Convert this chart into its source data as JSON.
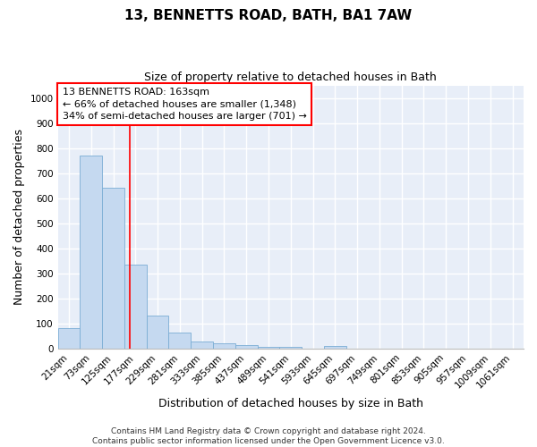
{
  "title": "13, BENNETTS ROAD, BATH, BA1 7AW",
  "subtitle": "Size of property relative to detached houses in Bath",
  "xlabel": "Distribution of detached houses by size in Bath",
  "ylabel": "Number of detached properties",
  "bar_color": "#c5d9f0",
  "bar_edge_color": "#7aadd4",
  "background_color": "#e8eef8",
  "grid_color": "#ffffff",
  "categories": [
    "21sqm",
    "73sqm",
    "125sqm",
    "177sqm",
    "229sqm",
    "281sqm",
    "333sqm",
    "385sqm",
    "437sqm",
    "489sqm",
    "541sqm",
    "593sqm",
    "645sqm",
    "697sqm",
    "749sqm",
    "801sqm",
    "853sqm",
    "905sqm",
    "957sqm",
    "1009sqm",
    "1061sqm"
  ],
  "values": [
    83,
    770,
    640,
    335,
    133,
    62,
    27,
    20,
    15,
    8,
    8,
    0,
    10,
    0,
    0,
    0,
    0,
    0,
    0,
    0,
    0
  ],
  "ylim": [
    0,
    1050
  ],
  "yticks": [
    0,
    100,
    200,
    300,
    400,
    500,
    600,
    700,
    800,
    900,
    1000
  ],
  "annotation_text": "13 BENNETTS ROAD: 163sqm\n← 66% of detached houses are smaller (1,348)\n34% of semi-detached houses are larger (701) →",
  "footer_line1": "Contains HM Land Registry data © Crown copyright and database right 2024.",
  "footer_line2": "Contains public sector information licensed under the Open Government Licence v3.0.",
  "title_fontsize": 11,
  "subtitle_fontsize": 9,
  "axis_label_fontsize": 9,
  "tick_fontsize": 7.5,
  "annotation_fontsize": 8,
  "footer_fontsize": 6.5
}
